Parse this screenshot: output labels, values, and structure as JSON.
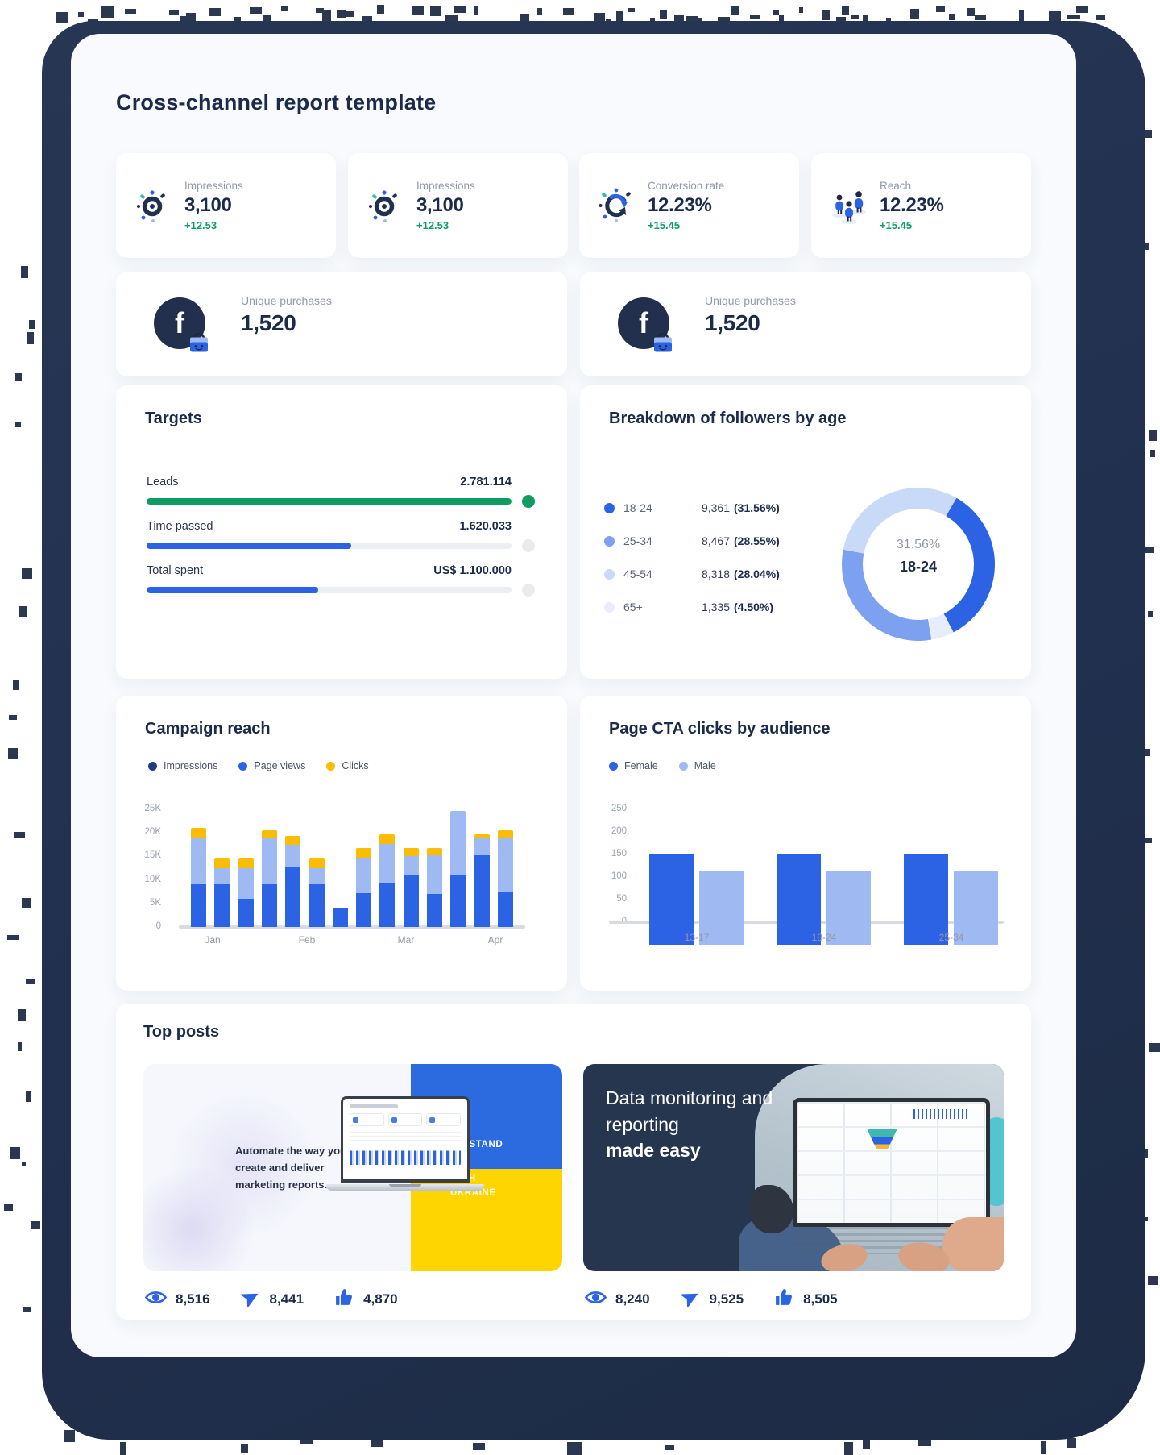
{
  "title": "Cross-channel report template",
  "colors": {
    "accent_blue": "#2c63e5",
    "periwinkle": "#9fb9f2",
    "navy_dot": "#1d3a86",
    "yellow": "#fbbc05",
    "green": "#0e9c62",
    "navy_text": "#1c2b4a",
    "dark_panel": "#27364f",
    "ukraine_blue": "#2b6bdf",
    "ukraine_yellow": "#fed500"
  },
  "kpis": [
    {
      "icon": "eye",
      "label": "Impressions",
      "value": "3,100",
      "delta": "+12.53"
    },
    {
      "icon": "eye",
      "label": "Impressions",
      "value": "3,100",
      "delta": "+12.53"
    },
    {
      "icon": "conversion",
      "label": "Conversion rate",
      "value": "12.23%",
      "delta": "+15.45"
    },
    {
      "icon": "people",
      "label": "Reach",
      "value": "12.23%",
      "delta": "+15.45"
    }
  ],
  "purchases": [
    {
      "badge_letter": "f",
      "label": "Unique purchases",
      "value": "1,520"
    },
    {
      "badge_letter": "f",
      "label": "Unique purchases",
      "value": "1,520"
    }
  ],
  "targets": {
    "title": "Targets",
    "rows": [
      {
        "label": "Leads",
        "value": "2.781.114",
        "pct": 100,
        "color": "#0e9c62"
      },
      {
        "label": "Time passed",
        "value": "1.620.033",
        "pct": 56,
        "color": "#2c63e5"
      },
      {
        "label": "Total spent",
        "value": "US$ 1.100.000",
        "pct": 47,
        "color": "#2c63e5"
      }
    ]
  },
  "breakdown": {
    "title": "Breakdown of followers by age"
  },
  "campaign": {
    "title": "Campaign reach"
  },
  "cta": {
    "title": "Page CTA clicks by audience"
  },
  "chart_data": [
    {
      "id": "campaign_reach",
      "type": "stacked_bar",
      "title": "Campaign reach",
      "x_labels": [
        "Jan",
        "Feb",
        "Mar",
        "Apr"
      ],
      "ylabel_ticks": [
        "25K",
        "20K",
        "15K",
        "10K",
        "5K",
        "0"
      ],
      "ylim": [
        0,
        25
      ],
      "unit": "K",
      "series": [
        {
          "name": "Impressions",
          "bar_color": "#2c63e5",
          "dot_color": "#1d3a86",
          "values": [
            9,
            9,
            6,
            9,
            12.7,
            9,
            4.2,
            7.2,
            9.3,
            11,
            7,
            11,
            15.2,
            7.4
          ]
        },
        {
          "name": "Page views",
          "bar_color": "#9fb9f2",
          "dot_color": "#2c63e5",
          "values": [
            10,
            3.5,
            6.5,
            10,
            4.8,
            3.5,
            0,
            7.6,
            8.4,
            4,
            8.2,
            13.7,
            3.8,
            11.6
          ]
        },
        {
          "name": "Clicks",
          "bar_color": "#fbbc05",
          "dot_color": "#fbbc05",
          "values": [
            2,
            2,
            2,
            1.5,
            1.8,
            2,
            0,
            2,
            2,
            1.8,
            1.6,
            0,
            0.7,
            1.5
          ]
        }
      ]
    },
    {
      "id": "cta_clicks",
      "type": "grouped_bar",
      "title": "Page CTA clicks by audience",
      "categories": [
        "13-17",
        "18-24",
        "25-34"
      ],
      "ylabel_ticks": [
        "250",
        "200",
        "150",
        "100",
        "50",
        "0"
      ],
      "ylim": [
        0,
        250
      ],
      "series": [
        {
          "name": "Female",
          "bar_color": "#2c63e5",
          "dot_color": "#2c63e5",
          "values": [
            200,
            200,
            200
          ]
        },
        {
          "name": "Male",
          "bar_color": "#9fb9f2",
          "dot_color": "#9fb9f2",
          "values": [
            165,
            165,
            165
          ]
        }
      ]
    },
    {
      "id": "followers_by_age",
      "type": "donut",
      "title": "Breakdown of followers by age",
      "center_pct": "31.56%",
      "center_label": "18-24",
      "segments": [
        {
          "range": "18-24",
          "value": "9,361",
          "pct": "31.56%",
          "pct_num": 31.56,
          "color": "#2c63e5"
        },
        {
          "range": "25-34",
          "value": "8,467",
          "pct": "28.55%",
          "pct_num": 28.55,
          "color": "#7da0f0"
        },
        {
          "range": "45-54",
          "value": "8,318",
          "pct": "28.04%",
          "pct_num": 28.04,
          "color": "#c9d9f8"
        },
        {
          "range": "65+",
          "value": "1,335",
          "pct": "4.50%",
          "pct_num": 4.5,
          "color": "#e7edfa"
        }
      ]
    }
  ],
  "top_posts": {
    "title": "Top posts",
    "posts": [
      {
        "caption": "Automate the way you create and deliver marketing  reports.",
        "flag_line1": "WE STAND",
        "flag_line2": "WITH UKRAINE",
        "stats": [
          {
            "icon": "eye",
            "value": "8,516"
          },
          {
            "icon": "send",
            "value": "8,441"
          },
          {
            "icon": "thumbs-up",
            "value": "4,870"
          }
        ]
      },
      {
        "heading": "Data monitoring and reporting",
        "heading_bold": "made easy",
        "stats": [
          {
            "icon": "eye",
            "value": "8,240"
          },
          {
            "icon": "send",
            "value": "9,525"
          },
          {
            "icon": "thumbs-up",
            "value": "8,505"
          }
        ]
      }
    ]
  }
}
